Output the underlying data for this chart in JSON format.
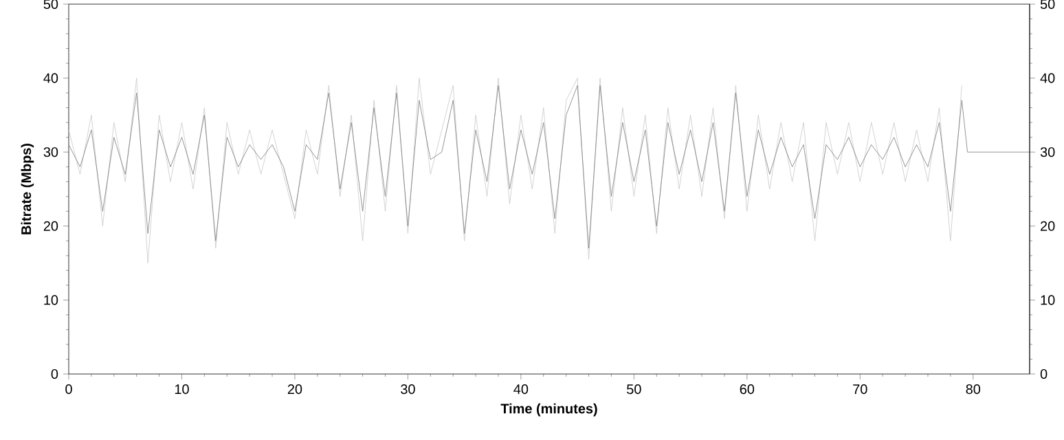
{
  "chart_data": {
    "type": "line",
    "xlabel": "Time (minutes)",
    "ylabel": "Bitrate (Mbps)",
    "xlim": [
      0,
      85
    ],
    "xticks": [
      0,
      10,
      20,
      30,
      40,
      50,
      60,
      70,
      80
    ],
    "ylim": [
      0,
      50
    ],
    "yticks": [
      0,
      10,
      20,
      30,
      40,
      50
    ],
    "y2lim": [
      0,
      50
    ],
    "y2ticks": [
      0,
      10,
      20,
      30,
      40,
      50
    ],
    "grid": false,
    "marker": "none",
    "line_style": "solid",
    "series": [
      {
        "color": "#c8c8c8",
        "x": [
          0,
          1,
          2,
          3,
          4,
          5,
          6,
          7,
          8,
          9,
          10,
          11,
          12,
          13,
          14,
          15,
          16,
          17,
          18,
          19,
          20,
          21,
          22,
          23,
          24,
          25,
          26,
          27,
          28,
          29,
          30,
          31,
          32,
          33,
          34,
          35,
          36,
          37,
          38,
          39,
          40,
          41,
          42,
          43,
          44,
          45,
          46,
          47,
          48,
          49,
          50,
          51,
          52,
          53,
          54,
          55,
          56,
          57,
          58,
          59,
          60,
          61,
          62,
          63,
          64,
          65,
          66,
          67,
          68,
          69,
          70,
          71,
          72,
          73,
          74,
          75,
          76,
          77,
          78,
          79
        ],
        "values": [
          33,
          27,
          35,
          20,
          34,
          26,
          40,
          15,
          35,
          26,
          34,
          25,
          36,
          17,
          34,
          27,
          33,
          27,
          33,
          27,
          21,
          33,
          27,
          39,
          24,
          35,
          18,
          37,
          22,
          39,
          19,
          40,
          27,
          33,
          39,
          18,
          35,
          24,
          40,
          23,
          35,
          25,
          36,
          19,
          37,
          40,
          15.5,
          40,
          22,
          36,
          24,
          35,
          19,
          36,
          25,
          35,
          24,
          36,
          21,
          39,
          22,
          35,
          25,
          34,
          26,
          34,
          18,
          34,
          27,
          34,
          26,
          34,
          27,
          34,
          26,
          33,
          26,
          36,
          18,
          39
        ]
      },
      {
        "color": "#7a7a7a",
        "x": [
          0,
          1,
          2,
          3,
          4,
          5,
          6,
          7,
          8,
          9,
          10,
          11,
          12,
          13,
          14,
          15,
          16,
          17,
          18,
          19,
          20,
          21,
          22,
          23,
          24,
          25,
          26,
          27,
          28,
          29,
          30,
          31,
          32,
          33,
          34,
          35,
          36,
          37,
          38,
          39,
          40,
          41,
          42,
          43,
          44,
          45,
          46,
          47,
          48,
          49,
          50,
          51,
          52,
          53,
          54,
          55,
          56,
          57,
          58,
          59,
          60,
          61,
          62,
          63,
          64,
          65,
          66,
          67,
          68,
          69,
          70,
          71,
          72,
          73,
          74,
          75,
          76,
          77,
          78,
          79,
          79.5,
          85
        ],
        "values": [
          31,
          28,
          33,
          22,
          32,
          27,
          38,
          19,
          33,
          28,
          32,
          27,
          35,
          18,
          32,
          28,
          31,
          29,
          31,
          28,
          22,
          31,
          29,
          38,
          25,
          34,
          22,
          36,
          24,
          38,
          20,
          37,
          29,
          30,
          37,
          19,
          33,
          26,
          39,
          25,
          33,
          27,
          34,
          21,
          35,
          39,
          17,
          39,
          24,
          34,
          26,
          33,
          20,
          34,
          27,
          33,
          26,
          34,
          22,
          38,
          24,
          33,
          27,
          32,
          28,
          31,
          21,
          31,
          29,
          32,
          28,
          31,
          29,
          32,
          28,
          31,
          28,
          34,
          22,
          37,
          30,
          30
        ]
      }
    ]
  }
}
